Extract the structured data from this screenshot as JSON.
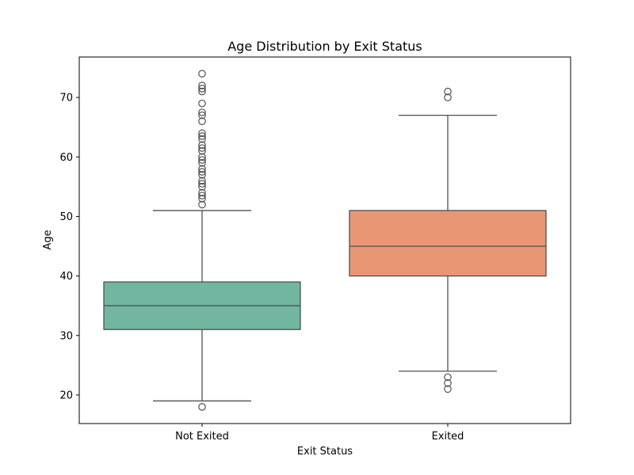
{
  "chart_data": {
    "type": "box",
    "title": "Age Distribution by Exit Status",
    "xlabel": "Exit Status",
    "ylabel": "Age",
    "ylim": [
      15.2,
      76.8
    ],
    "yticks": [
      20,
      30,
      40,
      50,
      60,
      70
    ],
    "categories": [
      "Not Exited",
      "Exited"
    ],
    "grid": false,
    "boxes": [
      {
        "category": "Not Exited",
        "color": "#72B6A1",
        "whisker_low": 19,
        "q1": 31,
        "median": 35,
        "q3": 39,
        "whisker_high": 51,
        "outliers": [
          18,
          52,
          53,
          53.5,
          54,
          55,
          55.5,
          56,
          57,
          57.5,
          58,
          59,
          59.5,
          60,
          61,
          61.5,
          62,
          63,
          63.5,
          64,
          66,
          67,
          67.5,
          69,
          71,
          71.5,
          72,
          74
        ]
      },
      {
        "category": "Exited",
        "color": "#E99675",
        "whisker_low": 24,
        "q1": 40,
        "median": 45,
        "q3": 51,
        "whisker_high": 67,
        "outliers": [
          21,
          22,
          23,
          70,
          71
        ]
      }
    ]
  }
}
